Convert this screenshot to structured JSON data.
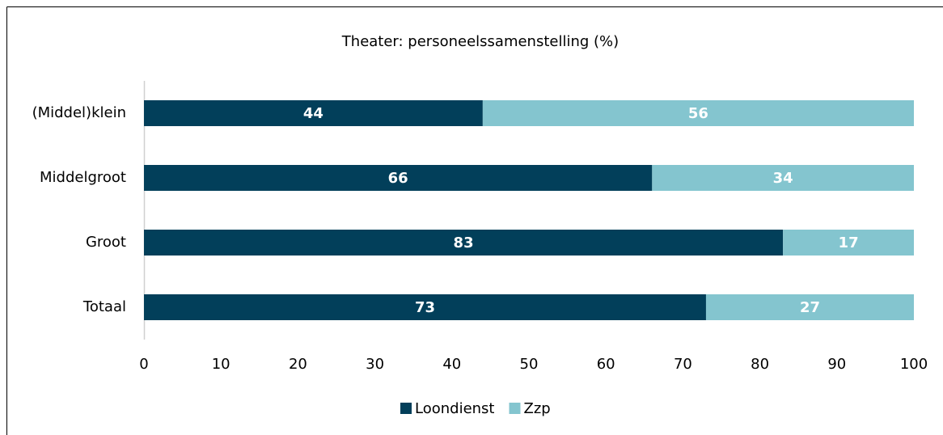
{
  "chart_data": {
    "type": "bar",
    "orientation": "horizontal",
    "stacked": true,
    "title": "Theater: personeelssamenstelling (%)",
    "categories": [
      "(Middel)klein",
      "Middelgroot",
      "Groot",
      "Totaal"
    ],
    "series": [
      {
        "name": "Loondienst",
        "color": "#023f5a",
        "values": [
          44,
          66,
          83,
          73
        ]
      },
      {
        "name": "Zzp",
        "color": "#84c5cf",
        "values": [
          56,
          34,
          17,
          27
        ]
      }
    ],
    "xlim": [
      0,
      100
    ],
    "xticks": [
      0,
      10,
      20,
      30,
      40,
      50,
      60,
      70,
      80,
      90,
      100
    ],
    "legend": "bottom",
    "grid": false
  }
}
